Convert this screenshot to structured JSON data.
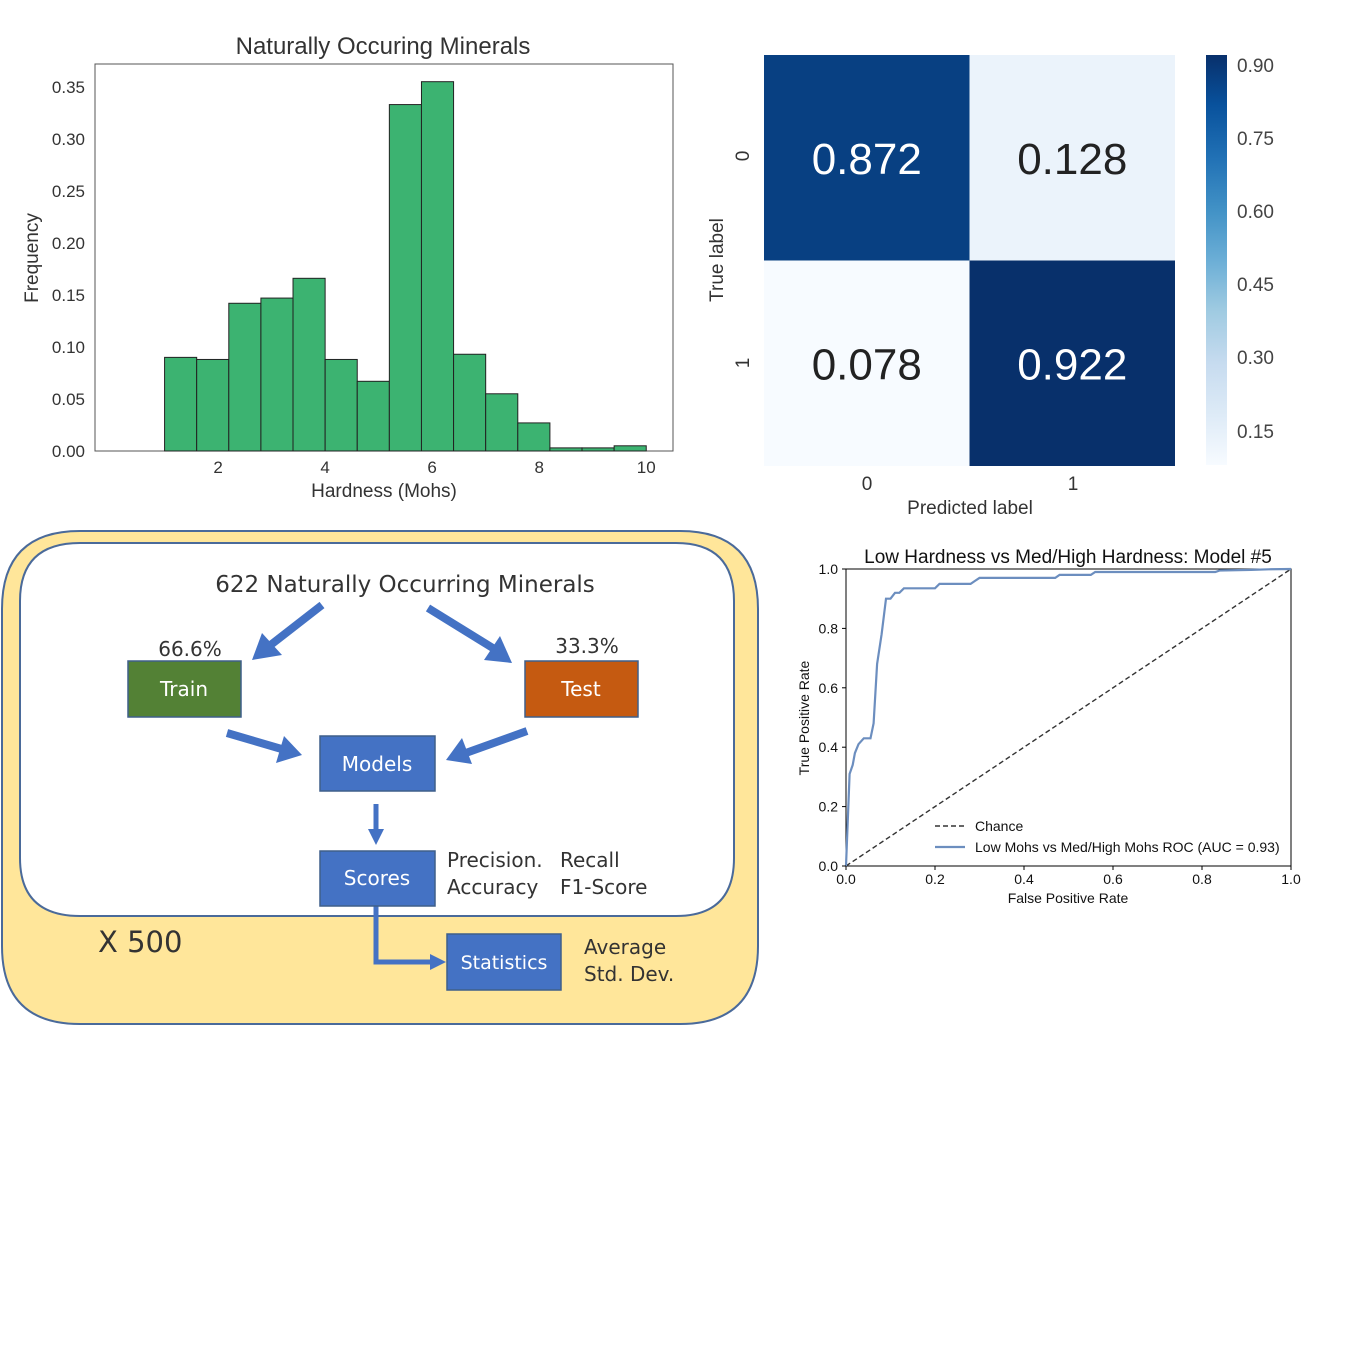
{
  "histogram": {
    "chart_data": {
      "type": "bar",
      "title": "Naturally Occuring Minerals",
      "xlabel": "Hardness (Mohs)",
      "ylabel": "Frequency",
      "bin_edges": [
        1.0,
        1.6,
        2.2,
        2.8,
        3.4,
        4.0,
        4.6,
        5.2,
        5.8,
        6.4,
        7.0,
        7.6,
        8.2,
        8.8,
        9.4,
        10.0
      ],
      "values": [
        0.09,
        0.088,
        0.142,
        0.147,
        0.166,
        0.088,
        0.067,
        0.333,
        0.355,
        0.093,
        0.055,
        0.027,
        0.003,
        0.003,
        0.005
      ],
      "xlim": [
        -0.3,
        10.5
      ],
      "ylim": [
        0,
        0.372
      ],
      "xticks": [
        2,
        4,
        6,
        8,
        10
      ],
      "yticks": [
        0.0,
        0.05,
        0.1,
        0.15,
        0.2,
        0.25,
        0.3,
        0.35
      ],
      "bar_color": "#3cb371",
      "grid": false
    }
  },
  "confusion": {
    "chart_data": {
      "type": "heatmap",
      "xlabel": "Predicted label",
      "ylabel": "True label",
      "x_categories": [
        "0",
        "1"
      ],
      "y_categories": [
        "0",
        "1"
      ],
      "values": [
        [
          0.872,
          0.128
        ],
        [
          0.078,
          0.922
        ]
      ],
      "colorbar_ticks": [
        "0.90",
        "0.75",
        "0.60",
        "0.45",
        "0.30",
        "0.15"
      ],
      "colormap": "Blues"
    }
  },
  "roc": {
    "chart_data": {
      "type": "line",
      "title": "Low Hardness vs Med/High Hardness: Model #5",
      "xlabel": "False Positive Rate",
      "ylabel": "True Positive Rate",
      "xlim": [
        0,
        1
      ],
      "ylim": [
        0,
        1
      ],
      "xticks": [
        "0.0",
        "0.2",
        "0.4",
        "0.6",
        "0.8",
        "1.0"
      ],
      "yticks": [
        "0.0",
        "0.2",
        "0.4",
        "0.6",
        "0.8",
        "1.0"
      ],
      "legend_position": "lower-right",
      "series": [
        {
          "name": "Chance",
          "style": "dashed",
          "color": "#333333",
          "points": [
            [
              0,
              0
            ],
            [
              1,
              1
            ]
          ]
        },
        {
          "name": "Low Mohs vs Med/High Mohs ROC (AUC = 0.93)",
          "style": "solid",
          "color": "#6c8ebf",
          "points": [
            [
              0,
              0
            ],
            [
              0.008,
              0.31
            ],
            [
              0.015,
              0.34
            ],
            [
              0.02,
              0.38
            ],
            [
              0.028,
              0.41
            ],
            [
              0.04,
              0.43
            ],
            [
              0.055,
              0.43
            ],
            [
              0.062,
              0.48
            ],
            [
              0.07,
              0.68
            ],
            [
              0.08,
              0.78
            ],
            [
              0.09,
              0.9
            ],
            [
              0.1,
              0.9
            ],
            [
              0.11,
              0.92
            ],
            [
              0.12,
              0.92
            ],
            [
              0.13,
              0.935
            ],
            [
              0.2,
              0.935
            ],
            [
              0.21,
              0.95
            ],
            [
              0.28,
              0.95
            ],
            [
              0.29,
              0.96
            ],
            [
              0.3,
              0.97
            ],
            [
              0.47,
              0.97
            ],
            [
              0.48,
              0.98
            ],
            [
              0.55,
              0.98
            ],
            [
              0.56,
              0.99
            ],
            [
              0.83,
              0.99
            ],
            [
              0.84,
              0.995
            ],
            [
              0.91,
              0.997
            ],
            [
              0.95,
              0.999
            ],
            [
              1.0,
              1.0
            ]
          ]
        }
      ]
    }
  },
  "flow": {
    "title": "622 Naturally Occurring Minerals",
    "train_pct": "66.6%",
    "test_pct": "33.3%",
    "train_label": "Train",
    "test_label": "Test",
    "models_label": "Models",
    "scores_label": "Scores",
    "statistics_label": "Statistics",
    "metric1": "Precision.",
    "metric2": "Recall",
    "metric3": "Accuracy",
    "metric4": "F1-Score",
    "stat1": "Average",
    "stat2": "Std. Dev.",
    "repeat_label": "X 500",
    "colors": {
      "outer_fill": "#ffe69a",
      "border": "#4a6a9a",
      "train": "#538135",
      "test": "#c55a11",
      "box": "#4472c4",
      "arrow": "#4472c4"
    }
  }
}
